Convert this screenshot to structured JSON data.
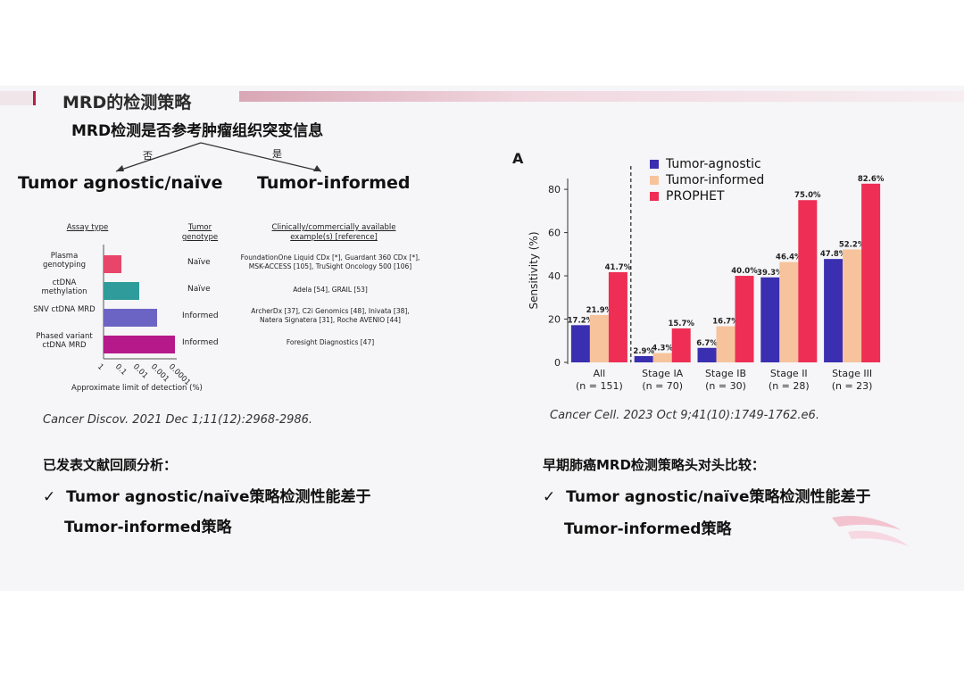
{
  "slide": {
    "title": "MRD的检测策略",
    "question": "MRD检测是否参考肿瘤组织突变信息",
    "branch_no": "否",
    "branch_yes": "是",
    "option_left": "Tumor agnostic/naïve",
    "option_right": "Tumor-informed"
  },
  "left_figure": {
    "headers": {
      "assay": "Assay type",
      "genotype": "Tumor genotype",
      "examples": "Clinically/commercially available example(s) [reference]"
    },
    "rows": [
      {
        "label": "Plasma genotyping",
        "genotype": "Naïve",
        "example": "FoundationOne Liquid CDx [*], Guardant 360 CDx [*],\nMSK-ACCESS [105], TruSight Oncology 500 [106]",
        "color": "#e8456a"
      },
      {
        "label": "ctDNA methylation",
        "genotype": "Naïve",
        "example": "Adela [54], GRAIL [53]",
        "color": "#2f9c9b"
      },
      {
        "label": "SNV ctDNA MRD",
        "genotype": "Informed",
        "example": "ArcherDx [37], C2i Genomics [48], Inivata [38],\nNatera Signatera [31], Roche AVENIO [44]",
        "color": "#6b64c4"
      },
      {
        "label": "Phased variant ctDNA MRD",
        "genotype": "Informed",
        "example": "Foresight Diagnostics [47]",
        "color": "#b5198a"
      }
    ],
    "x_ticks": [
      "1",
      "0.1",
      "0.01",
      "0.001",
      "0.0001"
    ],
    "x_label": "Approximate limit of detection (%)",
    "lod_values": [
      0.1,
      0.01,
      0.001,
      0.0001
    ],
    "citation": "Cancer Discov. 2021 Dec 1;11(12):2968-2986."
  },
  "chart_data": {
    "type": "bar",
    "panel": "A",
    "categories": [
      "All\n(n = 151)",
      "Stage IA\n(n = 70)",
      "Stage IB\n(n = 30)",
      "Stage II\n(n = 28)",
      "Stage III\n(n = 23)"
    ],
    "series": [
      {
        "name": "Tumor-agnostic",
        "values": [
          17.2,
          2.9,
          6.7,
          39.3,
          47.8
        ],
        "color": "#3a2fb0"
      },
      {
        "name": "Tumor-informed",
        "values": [
          21.9,
          4.3,
          16.7,
          46.4,
          52.2
        ],
        "color": "#f6c39c"
      },
      {
        "name": "PROPHET",
        "values": [
          41.7,
          15.7,
          40.0,
          75.0,
          82.6
        ],
        "color": "#ee2e54"
      }
    ],
    "value_labels": [
      [
        "17.2%",
        "2.9%",
        "6.7%",
        "39.3%",
        "47.8%"
      ],
      [
        "21.9%",
        "4.3%",
        "16.7%",
        "46.4%",
        "52.2%"
      ],
      [
        "41.7%",
        "15.7%",
        "40.0%",
        "75.0%",
        "82.6%"
      ]
    ],
    "ylabel": "Sensitivity (%)",
    "ylim": [
      0,
      85
    ],
    "yticks": [
      0,
      20,
      40,
      60,
      80
    ],
    "legend_position": "top-left",
    "citation": "Cancer Cell. 2023 Oct 9;41(10):1749-1762.e6."
  },
  "conclusions": {
    "left_heading": "已发表文献回顾分析：",
    "left_bullet_line1": "Tumor agnostic/naïve策略检测性能差于",
    "left_bullet_line2": "Tumor-informed策略",
    "right_heading": "早期肺癌MRD检测策略头对头比较：",
    "right_bullet_line1": "Tumor agnostic/naïve策略检测性能差于",
    "right_bullet_line2": "Tumor-informed策略",
    "check_mark": "✓"
  }
}
